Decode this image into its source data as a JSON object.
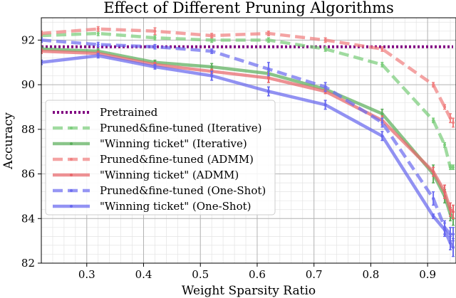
{
  "chart_data": {
    "type": "line",
    "title": "Effect of Different Pruning Algorithms",
    "xlabel": "Weight Sparsity Ratio",
    "ylabel": "Accuracy",
    "xlim": [
      0.22,
      0.95
    ],
    "ylim": [
      82,
      93
    ],
    "xticks": [
      "0.3",
      "0.4",
      "0.5",
      "0.6",
      "0.7",
      "0.8",
      "0.9"
    ],
    "yticks": [
      "82",
      "84",
      "86",
      "88",
      "90",
      "92"
    ],
    "grid": true,
    "legend_position": "bottom-left",
    "x": [
      0.22,
      0.32,
      0.42,
      0.52,
      0.62,
      0.72,
      0.82,
      0.91,
      0.93,
      0.94,
      0.945
    ],
    "series": [
      {
        "name": "Pretrained",
        "color": "#800080",
        "style": "dotted",
        "markers": false,
        "values": [
          91.7,
          91.7,
          91.7,
          91.7,
          91.7,
          91.7,
          91.7,
          91.7,
          91.7,
          91.7,
          91.7
        ],
        "errors": [
          0,
          0,
          0,
          0,
          0,
          0,
          0,
          0,
          0,
          0,
          0
        ]
      },
      {
        "name": "Pruned&fine-tuned (Iterative)",
        "color": "#7ccd7c",
        "style": "dashed",
        "markers": true,
        "values": [
          92.2,
          92.3,
          92.1,
          92.0,
          92.0,
          91.6,
          90.9,
          88.4,
          87.3,
          86.3,
          86.3
        ],
        "errors": [
          0.1,
          0.1,
          0.1,
          0.1,
          0.1,
          0.1,
          0.1,
          0.1,
          0.1,
          0.1,
          0.1
        ]
      },
      {
        "name": "\"Winning ticket\" (Iterative)",
        "color": "#5cae5c",
        "style": "solid",
        "markers": true,
        "values": [
          91.6,
          91.5,
          91.0,
          90.8,
          90.5,
          89.8,
          88.7,
          86.0,
          85.0,
          84.2,
          84.0
        ],
        "errors": [
          0.1,
          0.1,
          0.1,
          0.15,
          0.1,
          0.1,
          0.2,
          0.4,
          0.3,
          0.3,
          0.3
        ]
      },
      {
        "name": "Pruned&fine-tuned (ADMM)",
        "color": "#f08080",
        "style": "dashed",
        "markers": true,
        "values": [
          92.3,
          92.5,
          92.4,
          92.2,
          92.3,
          92.0,
          91.6,
          90.0,
          89.0,
          88.5,
          88.3
        ],
        "errors": [
          0.1,
          0.1,
          0.15,
          0.1,
          0.1,
          0.1,
          0.1,
          0.1,
          0.1,
          0.2,
          0.2
        ]
      },
      {
        "name": "\"Winning ticket\" (ADMM)",
        "color": "#e8676b",
        "style": "solid",
        "markers": true,
        "values": [
          91.5,
          91.4,
          90.9,
          90.6,
          90.3,
          89.7,
          88.4,
          86.1,
          85.2,
          84.4,
          84.3
        ],
        "errors": [
          0.1,
          0.1,
          0.1,
          0.1,
          0.2,
          0.1,
          0.2,
          0.2,
          0.3,
          0.3,
          0.3
        ]
      },
      {
        "name": "Pruned&fine-tuned (One-Shot)",
        "color": "#6e6ef0",
        "style": "dashed",
        "markers": true,
        "values": [
          92.0,
          91.8,
          91.7,
          91.5,
          90.7,
          89.9,
          88.3,
          84.9,
          83.6,
          83.3,
          83.3
        ],
        "errors": [
          0.1,
          0.1,
          0.1,
          0.1,
          0.3,
          0.2,
          0.2,
          0.3,
          0.3,
          0.3,
          0.3
        ]
      },
      {
        "name": "\"Winning ticket\" (One-Shot)",
        "color": "#6868ee",
        "style": "solid",
        "markers": true,
        "values": [
          91.0,
          91.3,
          90.8,
          90.4,
          89.7,
          89.1,
          87.7,
          84.1,
          83.5,
          82.9,
          82.7
        ],
        "errors": [
          0.1,
          0.1,
          0.1,
          0.2,
          0.2,
          0.2,
          0.2,
          0.1,
          0.3,
          0.3,
          0.4
        ]
      }
    ]
  }
}
